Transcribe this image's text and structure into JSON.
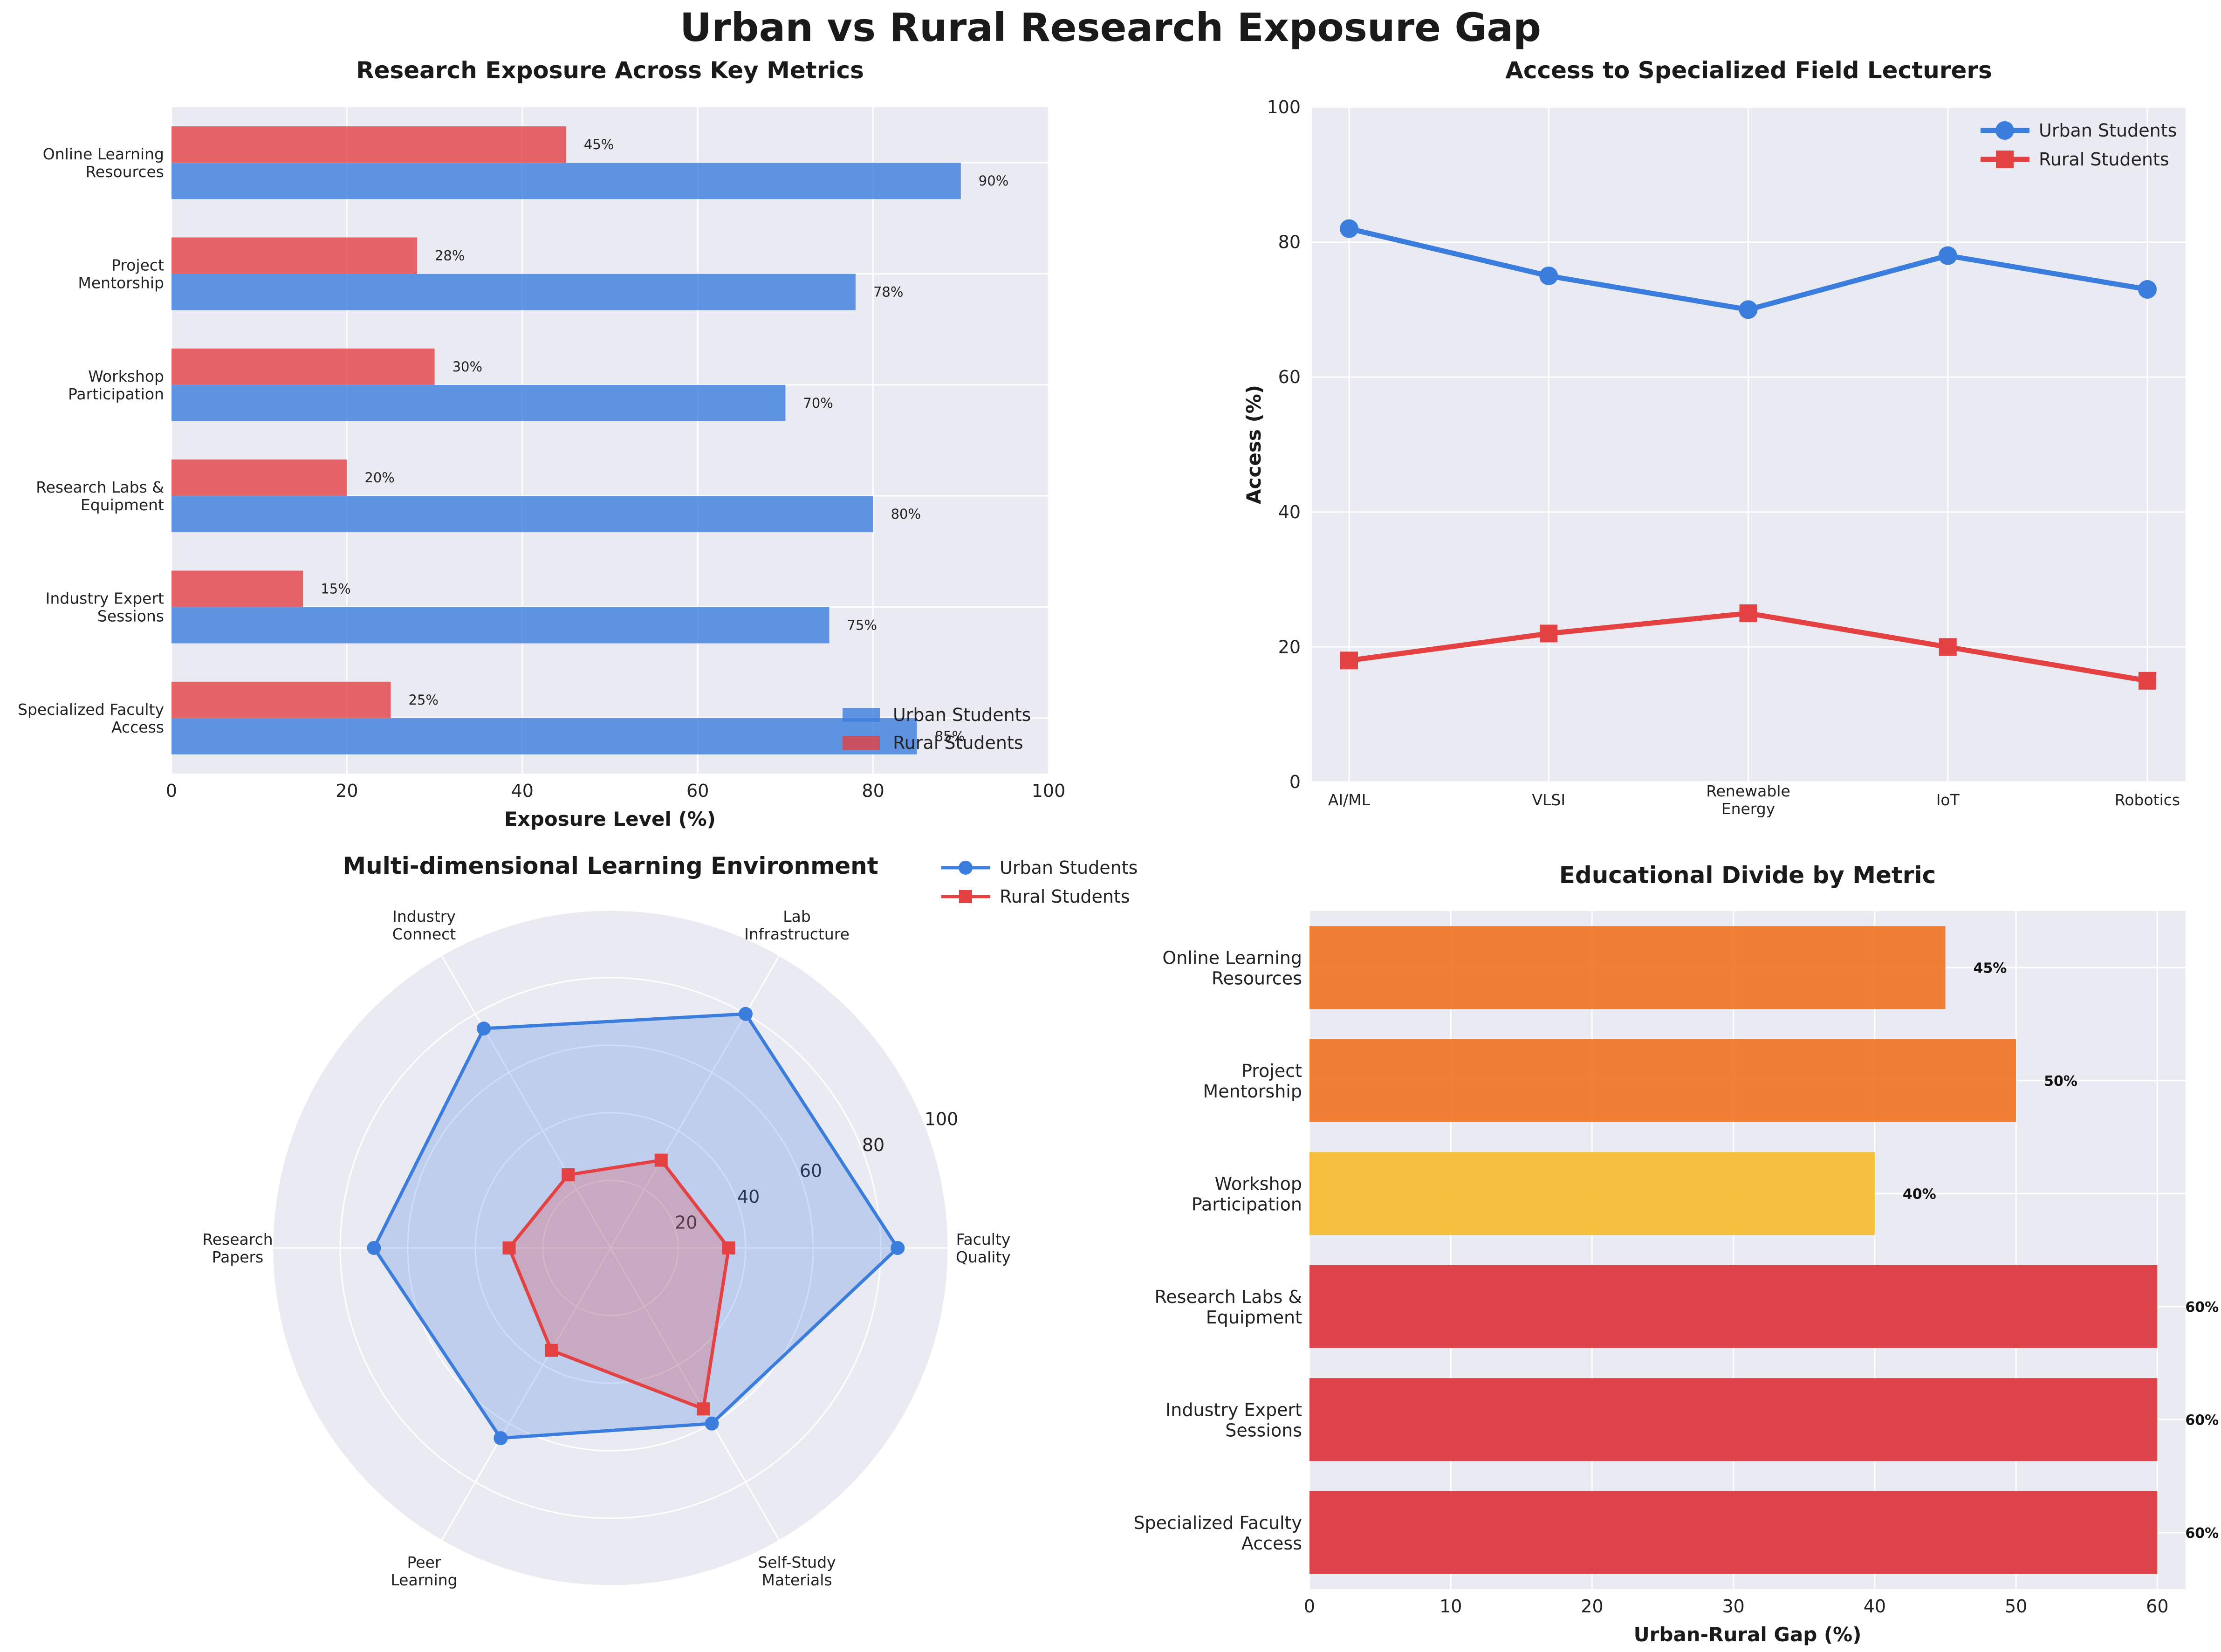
{
  "title": "Urban vs Rural Research Exposure Gap",
  "colors": {
    "urban": "#3b7ddd",
    "rural": "#e34142",
    "panel_bg": "#eaeaf2",
    "grid": "#ffffff",
    "gap_high": "#dc3b40",
    "gap_mid": "#f0782a",
    "gap_low": "#f6bd33"
  },
  "chart_data": [
    {
      "type": "bar",
      "orientation": "horizontal",
      "title": "Research Exposure Across Key Metrics",
      "xlabel": "Exposure Level (%)",
      "ylabel": "",
      "xlim": [
        0,
        100
      ],
      "xticks": [
        "0",
        "20",
        "40",
        "60",
        "80",
        "100"
      ],
      "categories": [
        "Specialized Faculty\nAccess",
        "Industry Expert\nSessions",
        "Research Labs &\nEquipment",
        "Workshop\nParticipation",
        "Project\nMentorship",
        "Online Learning\nResources"
      ],
      "series": [
        {
          "name": "Urban Students",
          "values": [
            85,
            75,
            80,
            70,
            78,
            90
          ],
          "labels": [
            "85%",
            "75%",
            "80%",
            "70%",
            "78%",
            "90%"
          ]
        },
        {
          "name": "Rural Students",
          "values": [
            25,
            15,
            20,
            30,
            28,
            45
          ],
          "labels": [
            "25%",
            "15%",
            "20%",
            "30%",
            "28%",
            "45%"
          ]
        }
      ],
      "legend": "lower-right",
      "grid": true
    },
    {
      "type": "line",
      "title": "Access to Specialized Field Lecturers",
      "xlabel": "",
      "ylabel": "Access (%)",
      "ylim": [
        0,
        100
      ],
      "yticks": [
        "0",
        "20",
        "40",
        "60",
        "80",
        "100"
      ],
      "categories": [
        "AI/ML",
        "VLSI",
        "Renewable\nEnergy",
        "IoT",
        "Robotics"
      ],
      "series": [
        {
          "name": "Urban Students",
          "values": [
            82,
            75,
            70,
            78,
            73
          ],
          "marker": "circle"
        },
        {
          "name": "Rural Students",
          "values": [
            18,
            22,
            25,
            20,
            15
          ],
          "marker": "square"
        }
      ],
      "legend": "top-right",
      "grid": true
    },
    {
      "type": "radar",
      "title": "Multi-dimensional Learning Environment",
      "categories": [
        "Faculty\nQuality",
        "Lab\nInfrastructure",
        "Industry\nConnect",
        "Research\nPapers",
        "Peer\nLearning",
        "Self-Study\nMaterials"
      ],
      "rlim": [
        0,
        100
      ],
      "rticks": [
        "20",
        "40",
        "60",
        "80",
        "100"
      ],
      "series": [
        {
          "name": "Urban Students",
          "values": [
            85,
            80,
            75,
            70,
            65,
            60
          ]
        },
        {
          "name": "Rural Students",
          "values": [
            35,
            30,
            25,
            30,
            35,
            55
          ]
        }
      ],
      "legend": "top-right outside"
    },
    {
      "type": "bar",
      "orientation": "horizontal",
      "title": "Educational Divide by Metric",
      "xlabel": "Urban-Rural Gap (%)",
      "ylabel": "",
      "xlim": [
        0,
        62
      ],
      "xticks": [
        "0",
        "10",
        "20",
        "30",
        "40",
        "50",
        "60"
      ],
      "categories": [
        "Specialized Faculty\nAccess",
        "Industry Expert\nSessions",
        "Research Labs &\nEquipment",
        "Workshop\nParticipation",
        "Project\nMentorship",
        "Online Learning\nResources"
      ],
      "values": [
        60,
        60,
        60,
        40,
        50,
        45
      ],
      "labels": [
        "60%",
        "60%",
        "60%",
        "40%",
        "50%",
        "45%"
      ],
      "grid": true
    }
  ]
}
